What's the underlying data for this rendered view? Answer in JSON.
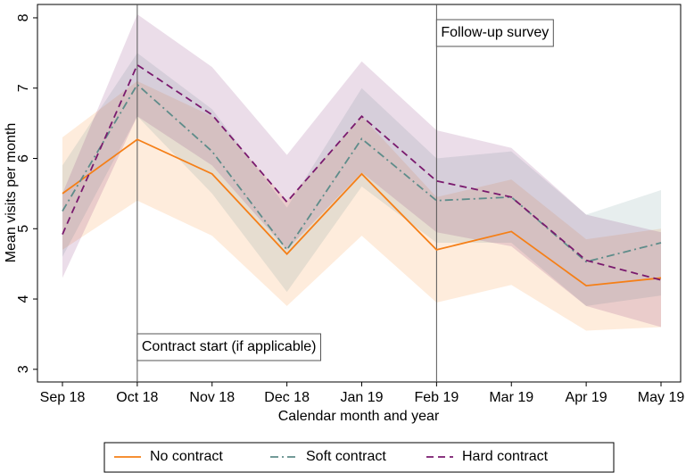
{
  "chart_data": {
    "type": "line",
    "x_label": "Calendar month and year",
    "y_label": "Mean visits per month",
    "categories": [
      "Sep 18",
      "Oct 18",
      "Nov 18",
      "Dec 18",
      "Jan 19",
      "Feb 19",
      "Mar 19",
      "Apr 19",
      "May 19"
    ],
    "ylim": [
      2.82,
      8.19
    ],
    "yticks": [
      3,
      4,
      5,
      6,
      7,
      8
    ],
    "series": [
      {
        "name": "No contract",
        "color": "#f57f17",
        "dash": "solid",
        "values": [
          5.5,
          6.27,
          5.78,
          4.64,
          5.78,
          4.7,
          4.96,
          4.19,
          4.3
        ],
        "lower": [
          4.7,
          5.4,
          4.9,
          3.9,
          4.9,
          3.95,
          4.2,
          3.55,
          3.6
        ],
        "upper": [
          6.3,
          7.1,
          6.6,
          5.4,
          6.6,
          5.45,
          5.7,
          4.85,
          5.0
        ]
      },
      {
        "name": "Soft contract",
        "color": "#5e8c8a",
        "dash": "dashdot",
        "values": [
          5.25,
          7.05,
          6.1,
          4.7,
          6.28,
          5.4,
          5.45,
          4.53,
          4.8
        ],
        "lower": [
          4.6,
          6.6,
          5.5,
          4.1,
          5.6,
          4.8,
          4.8,
          3.9,
          4.05
        ],
        "upper": [
          5.9,
          7.5,
          6.7,
          5.3,
          7.0,
          6.0,
          6.1,
          5.2,
          5.55
        ]
      },
      {
        "name": "Hard contract",
        "color": "#7a1a6e",
        "dash": "dash",
        "values": [
          4.92,
          7.33,
          6.62,
          5.38,
          6.6,
          5.68,
          5.45,
          4.55,
          4.27
        ],
        "lower": [
          4.3,
          6.6,
          5.9,
          4.7,
          5.8,
          4.95,
          4.75,
          3.9,
          3.6
        ],
        "upper": [
          5.5,
          8.05,
          7.3,
          6.05,
          7.38,
          6.4,
          6.15,
          5.2,
          4.95
        ]
      }
    ],
    "annotations": [
      {
        "x": "Oct 18",
        "text": "Contract start (if applicable)",
        "position": "bottom"
      },
      {
        "x": "Feb 19",
        "text": "Follow-up survey",
        "position": "top"
      }
    ],
    "legend_position": "bottom"
  }
}
